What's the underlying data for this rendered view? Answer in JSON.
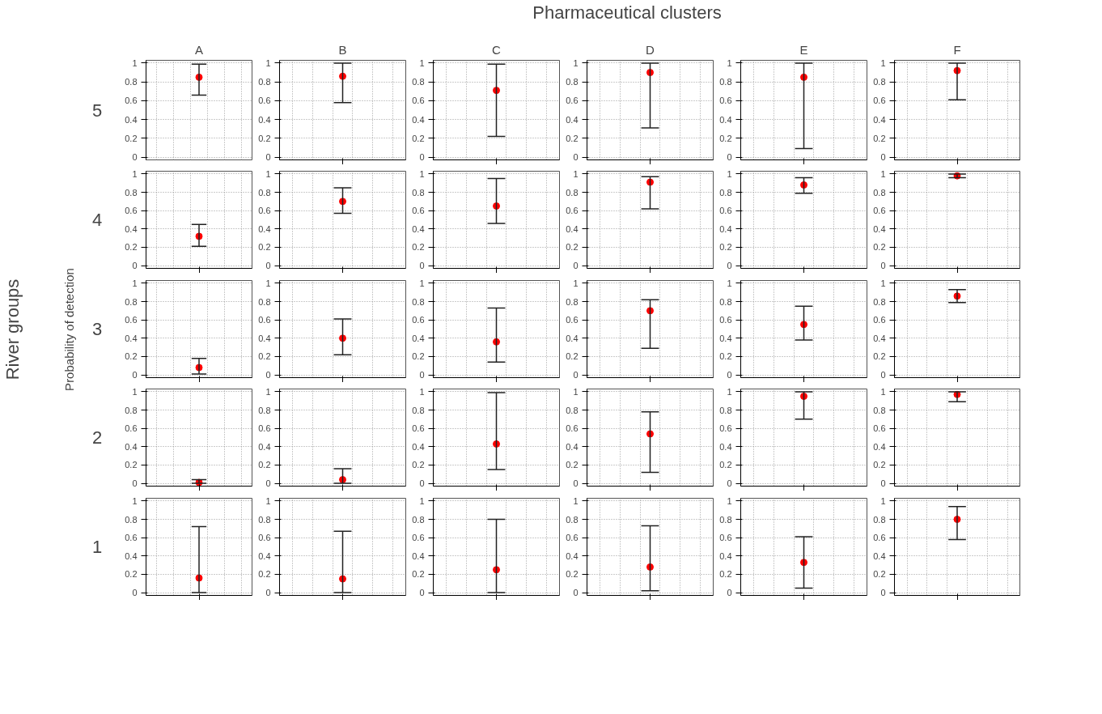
{
  "chart_data": [
    {
      "type": "scatter",
      "title": "A",
      "ylabel": "5",
      "categories": [
        null
      ],
      "values": [
        0.85
      ],
      "errors": [
        [
          0.66,
          0.99
        ]
      ],
      "color": "#ff0000",
      "ylim": [
        -0.03,
        1.03
      ],
      "yticks": [
        0,
        0.2,
        0.4,
        0.6,
        0.8,
        1
      ],
      "grid": true,
      "tick_labels": "y",
      "marker": "circle"
    },
    {
      "type": "scatter",
      "title": "B",
      "categories": [
        null
      ],
      "values": [
        0.86
      ],
      "errors": [
        [
          0.58,
          1.0
        ]
      ],
      "color": "#ff0000",
      "ylim": [
        -0.03,
        1.03
      ],
      "yticks": [
        0,
        0.2,
        0.4,
        0.6,
        0.8,
        1
      ],
      "grid": true,
      "marker": "circle"
    },
    {
      "type": "scatter",
      "title": "C",
      "categories": [
        null
      ],
      "values": [
        0.71
      ],
      "errors": [
        [
          0.22,
          0.99
        ]
      ],
      "color": "#ff0000",
      "ylim": [
        -0.03,
        1.03
      ],
      "yticks": [
        0,
        0.2,
        0.4,
        0.6,
        0.8,
        1
      ],
      "grid": true,
      "marker": "circle"
    },
    {
      "type": "scatter",
      "title": "D",
      "categories": [
        null
      ],
      "values": [
        0.9
      ],
      "errors": [
        [
          0.31,
          1.0
        ]
      ],
      "color": "#ff0000",
      "ylim": [
        -0.03,
        1.03
      ],
      "yticks": [
        0,
        0.2,
        0.4,
        0.6,
        0.8,
        1
      ],
      "grid": true,
      "marker": "circle"
    },
    {
      "type": "scatter",
      "title": "E",
      "categories": [
        null
      ],
      "values": [
        0.85
      ],
      "errors": [
        [
          0.09,
          1.0
        ]
      ],
      "color": "#ff0000",
      "ylim": [
        -0.03,
        1.03
      ],
      "yticks": [
        0,
        0.2,
        0.4,
        0.6,
        0.8,
        1
      ],
      "grid": true,
      "marker": "circle"
    },
    {
      "type": "scatter",
      "title": "F",
      "categories": [
        null
      ],
      "values": [
        0.92
      ],
      "errors": [
        [
          0.61,
          1.0
        ]
      ],
      "color": "#ff0000",
      "ylim": [
        -0.03,
        1.03
      ],
      "yticks": [
        0,
        0.2,
        0.4,
        0.6,
        0.8,
        1
      ],
      "grid": true,
      "marker": "circle"
    },
    {
      "type": "scatter",
      "ylabel": "4",
      "categories": [
        null
      ],
      "values": [
        0.32
      ],
      "errors": [
        [
          0.21,
          0.45
        ]
      ],
      "color": "#ff0000",
      "ylim": [
        -0.03,
        1.03
      ],
      "yticks": [
        0,
        0.2,
        0.4,
        0.6,
        0.8,
        1
      ],
      "grid": true,
      "marker": "circle"
    },
    {
      "type": "scatter",
      "categories": [
        null
      ],
      "values": [
        0.7
      ],
      "errors": [
        [
          0.57,
          0.85
        ]
      ],
      "color": "#ff0000",
      "ylim": [
        -0.03,
        1.03
      ],
      "yticks": [
        0,
        0.2,
        0.4,
        0.6,
        0.8,
        1
      ],
      "grid": true,
      "marker": "circle"
    },
    {
      "type": "scatter",
      "categories": [
        null
      ],
      "values": [
        0.65
      ],
      "errors": [
        [
          0.46,
          0.95
        ]
      ],
      "color": "#ff0000",
      "ylim": [
        -0.03,
        1.03
      ],
      "yticks": [
        0,
        0.2,
        0.4,
        0.6,
        0.8,
        1
      ],
      "grid": true,
      "marker": "circle"
    },
    {
      "type": "scatter",
      "categories": [
        null
      ],
      "values": [
        0.91
      ],
      "errors": [
        [
          0.62,
          0.97
        ]
      ],
      "color": "#ff0000",
      "ylim": [
        -0.03,
        1.03
      ],
      "yticks": [
        0,
        0.2,
        0.4,
        0.6,
        0.8,
        1
      ],
      "grid": true,
      "marker": "circle"
    },
    {
      "type": "scatter",
      "categories": [
        null
      ],
      "values": [
        0.88
      ],
      "errors": [
        [
          0.79,
          0.96
        ]
      ],
      "color": "#ff0000",
      "ylim": [
        -0.03,
        1.03
      ],
      "yticks": [
        0,
        0.2,
        0.4,
        0.6,
        0.8,
        1
      ],
      "grid": true,
      "marker": "circle"
    },
    {
      "type": "scatter",
      "categories": [
        null
      ],
      "values": [
        0.98
      ],
      "errors": [
        [
          0.96,
          1.0
        ]
      ],
      "color": "#ff0000",
      "ylim": [
        -0.03,
        1.03
      ],
      "yticks": [
        0,
        0.2,
        0.4,
        0.6,
        0.8,
        1
      ],
      "grid": true,
      "marker": "circle"
    },
    {
      "type": "scatter",
      "ylabel": "3",
      "categories": [
        null
      ],
      "values": [
        0.08
      ],
      "errors": [
        [
          0.01,
          0.18
        ]
      ],
      "color": "#ff0000",
      "ylim": [
        -0.03,
        1.03
      ],
      "yticks": [
        0,
        0.2,
        0.4,
        0.6,
        0.8,
        1
      ],
      "grid": true,
      "marker": "circle"
    },
    {
      "type": "scatter",
      "categories": [
        null
      ],
      "values": [
        0.4
      ],
      "errors": [
        [
          0.22,
          0.61
        ]
      ],
      "color": "#ff0000",
      "ylim": [
        -0.03,
        1.03
      ],
      "yticks": [
        0,
        0.2,
        0.4,
        0.6,
        0.8,
        1
      ],
      "grid": true,
      "marker": "circle"
    },
    {
      "type": "scatter",
      "categories": [
        null
      ],
      "values": [
        0.36
      ],
      "errors": [
        [
          0.14,
          0.73
        ]
      ],
      "color": "#ff0000",
      "ylim": [
        -0.03,
        1.03
      ],
      "yticks": [
        0,
        0.2,
        0.4,
        0.6,
        0.8,
        1
      ],
      "grid": true,
      "marker": "circle"
    },
    {
      "type": "scatter",
      "categories": [
        null
      ],
      "values": [
        0.7
      ],
      "errors": [
        [
          0.29,
          0.82
        ]
      ],
      "color": "#ff0000",
      "ylim": [
        -0.03,
        1.03
      ],
      "yticks": [
        0,
        0.2,
        0.4,
        0.6,
        0.8,
        1
      ],
      "grid": true,
      "marker": "circle"
    },
    {
      "type": "scatter",
      "categories": [
        null
      ],
      "values": [
        0.55
      ],
      "errors": [
        [
          0.38,
          0.75
        ]
      ],
      "color": "#ff0000",
      "ylim": [
        -0.03,
        1.03
      ],
      "yticks": [
        0,
        0.2,
        0.4,
        0.6,
        0.8,
        1
      ],
      "grid": true,
      "marker": "circle"
    },
    {
      "type": "scatter",
      "categories": [
        null
      ],
      "values": [
        0.86
      ],
      "errors": [
        [
          0.79,
          0.93
        ]
      ],
      "color": "#ff0000",
      "ylim": [
        -0.03,
        1.03
      ],
      "yticks": [
        0,
        0.2,
        0.4,
        0.6,
        0.8,
        1
      ],
      "grid": true,
      "marker": "circle"
    },
    {
      "type": "scatter",
      "ylabel": "2",
      "categories": [
        null
      ],
      "values": [
        0.01
      ],
      "errors": [
        [
          0.0,
          0.04
        ]
      ],
      "color": "#ff0000",
      "ylim": [
        -0.03,
        1.03
      ],
      "yticks": [
        0,
        0.2,
        0.4,
        0.6,
        0.8,
        1
      ],
      "grid": true,
      "marker": "circle"
    },
    {
      "type": "scatter",
      "categories": [
        null
      ],
      "values": [
        0.04
      ],
      "errors": [
        [
          0.0,
          0.16
        ]
      ],
      "color": "#ff0000",
      "ylim": [
        -0.03,
        1.03
      ],
      "yticks": [
        0,
        0.2,
        0.4,
        0.6,
        0.8,
        1
      ],
      "grid": true,
      "marker": "circle"
    },
    {
      "type": "scatter",
      "categories": [
        null
      ],
      "values": [
        0.43
      ],
      "errors": [
        [
          0.15,
          0.99
        ]
      ],
      "color": "#ff0000",
      "ylim": [
        -0.03,
        1.03
      ],
      "yticks": [
        0,
        0.2,
        0.4,
        0.6,
        0.8,
        1
      ],
      "grid": true,
      "marker": "circle"
    },
    {
      "type": "scatter",
      "categories": [
        null
      ],
      "values": [
        0.54
      ],
      "errors": [
        [
          0.12,
          0.78
        ]
      ],
      "color": "#ff0000",
      "ylim": [
        -0.03,
        1.03
      ],
      "yticks": [
        0,
        0.2,
        0.4,
        0.6,
        0.8,
        1
      ],
      "grid": true,
      "marker": "circle"
    },
    {
      "type": "scatter",
      "categories": [
        null
      ],
      "values": [
        0.95
      ],
      "errors": [
        [
          0.7,
          1.0
        ]
      ],
      "color": "#ff0000",
      "ylim": [
        -0.03,
        1.03
      ],
      "yticks": [
        0,
        0.2,
        0.4,
        0.6,
        0.8,
        1
      ],
      "grid": true,
      "marker": "circle"
    },
    {
      "type": "scatter",
      "categories": [
        null
      ],
      "values": [
        0.97
      ],
      "errors": [
        [
          0.89,
          1.0
        ]
      ],
      "color": "#ff0000",
      "ylim": [
        -0.03,
        1.03
      ],
      "yticks": [
        0,
        0.2,
        0.4,
        0.6,
        0.8,
        1
      ],
      "grid": true,
      "marker": "circle"
    },
    {
      "type": "scatter",
      "ylabel": "1",
      "categories": [
        null
      ],
      "values": [
        0.16
      ],
      "errors": [
        [
          0.0,
          0.72
        ]
      ],
      "color": "#ff0000",
      "ylim": [
        -0.03,
        1.03
      ],
      "yticks": [
        0,
        0.2,
        0.4,
        0.6,
        0.8,
        1
      ],
      "grid": true,
      "marker": "circle"
    },
    {
      "type": "scatter",
      "categories": [
        null
      ],
      "values": [
        0.15
      ],
      "errors": [
        [
          0.0,
          0.67
        ]
      ],
      "color": "#ff0000",
      "ylim": [
        -0.03,
        1.03
      ],
      "yticks": [
        0,
        0.2,
        0.4,
        0.6,
        0.8,
        1
      ],
      "grid": true,
      "marker": "circle"
    },
    {
      "type": "scatter",
      "categories": [
        null
      ],
      "values": [
        0.25
      ],
      "errors": [
        [
          0.0,
          0.8
        ]
      ],
      "color": "#ff0000",
      "ylim": [
        -0.03,
        1.03
      ],
      "yticks": [
        0,
        0.2,
        0.4,
        0.6,
        0.8,
        1
      ],
      "grid": true,
      "marker": "circle"
    },
    {
      "type": "scatter",
      "categories": [
        null
      ],
      "values": [
        0.28
      ],
      "errors": [
        [
          0.02,
          0.73
        ]
      ],
      "color": "#ff0000",
      "ylim": [
        -0.03,
        1.03
      ],
      "yticks": [
        0,
        0.2,
        0.4,
        0.6,
        0.8,
        1
      ],
      "grid": true,
      "marker": "circle"
    },
    {
      "type": "scatter",
      "categories": [
        null
      ],
      "values": [
        0.33
      ],
      "errors": [
        [
          0.05,
          0.61
        ]
      ],
      "color": "#ff0000",
      "ylim": [
        -0.03,
        1.03
      ],
      "yticks": [
        0,
        0.2,
        0.4,
        0.6,
        0.8,
        1
      ],
      "grid": true,
      "marker": "circle"
    },
    {
      "type": "scatter",
      "categories": [
        null
      ],
      "values": [
        0.8
      ],
      "errors": [
        [
          0.58,
          0.94
        ]
      ],
      "color": "#ff0000",
      "ylim": [
        -0.03,
        1.03
      ],
      "yticks": [
        0,
        0.2,
        0.4,
        0.6,
        0.8,
        1
      ],
      "grid": true,
      "marker": "circle"
    },
    {
      "type": "other",
      "title": "Pharmaceutical clusters",
      "ylabel": "River groups",
      "annotations": [
        "Probability of detection"
      ]
    }
  ]
}
